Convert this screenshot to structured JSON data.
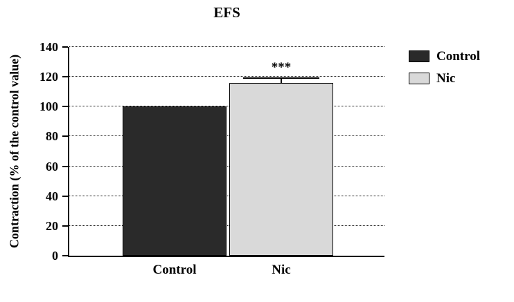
{
  "chart_data": {
    "type": "bar",
    "title": "EFS",
    "ylabel": "Contraction (% of the control value)",
    "xlabel": "",
    "categories": [
      "Control",
      "Nic"
    ],
    "values": [
      100,
      116
    ],
    "errors": [
      0,
      3
    ],
    "significance": [
      {
        "category": "Nic",
        "label": "***"
      }
    ],
    "ylim": [
      0,
      140
    ],
    "ytick_step": 20,
    "grid": "horizontal-dotted",
    "legend_position": "right",
    "legend": [
      {
        "label": "Control",
        "color": "#2a2a2a"
      },
      {
        "label": "Nic",
        "color": "#d9d9d9"
      }
    ],
    "bar_colors": [
      "#2a2a2a",
      "#d9d9d9"
    ],
    "bar_border_color": "#000000",
    "axis_color": "#000000"
  }
}
